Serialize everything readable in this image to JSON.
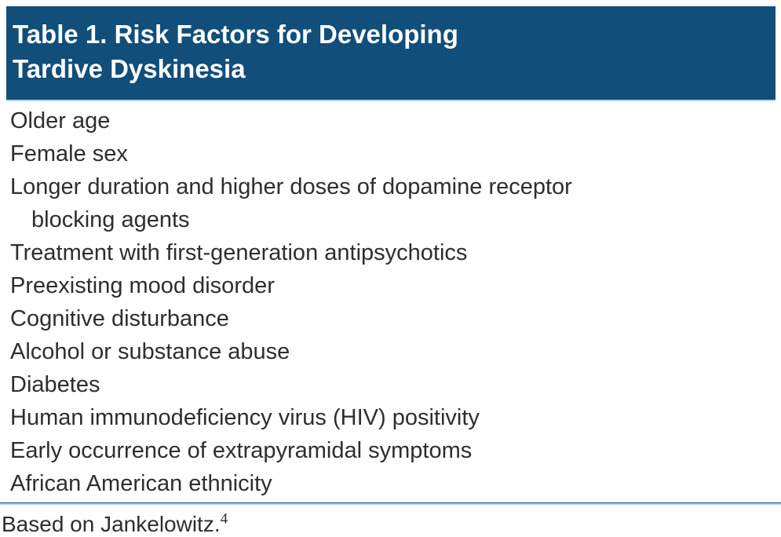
{
  "table": {
    "title_line1": "Table 1. Risk Factors for Developing",
    "title_line2": "Tardive Dyskinesia",
    "rows": [
      {
        "text": "Older age",
        "indent": 0
      },
      {
        "text": "Female sex",
        "indent": 0
      },
      {
        "text": "Longer duration and higher doses of dopamine receptor",
        "indent": 0
      },
      {
        "text": "blocking agents",
        "indent": 1
      },
      {
        "text": "Treatment with first-generation antipsychotics",
        "indent": 0
      },
      {
        "text": "Preexisting mood disorder",
        "indent": 0
      },
      {
        "text": "Cognitive disturbance",
        "indent": 0
      },
      {
        "text": "Alcohol or substance abuse",
        "indent": 0
      },
      {
        "text": "Diabetes",
        "indent": 0
      },
      {
        "text": "Human immunodeficiency virus (HIV) positivity",
        "indent": 0
      },
      {
        "text": "Early occurrence of extrapyramidal symptoms",
        "indent": 0
      },
      {
        "text": "African American ethnicity",
        "indent": 0
      }
    ],
    "footnote": {
      "text": "Based on Jankelowitz.",
      "ref": "4"
    }
  },
  "colors": {
    "header_bg": "#114e7a",
    "accent_light": "#b9d3e6",
    "rule_dark": "#15527e",
    "text_color": "#2e2e2e"
  }
}
